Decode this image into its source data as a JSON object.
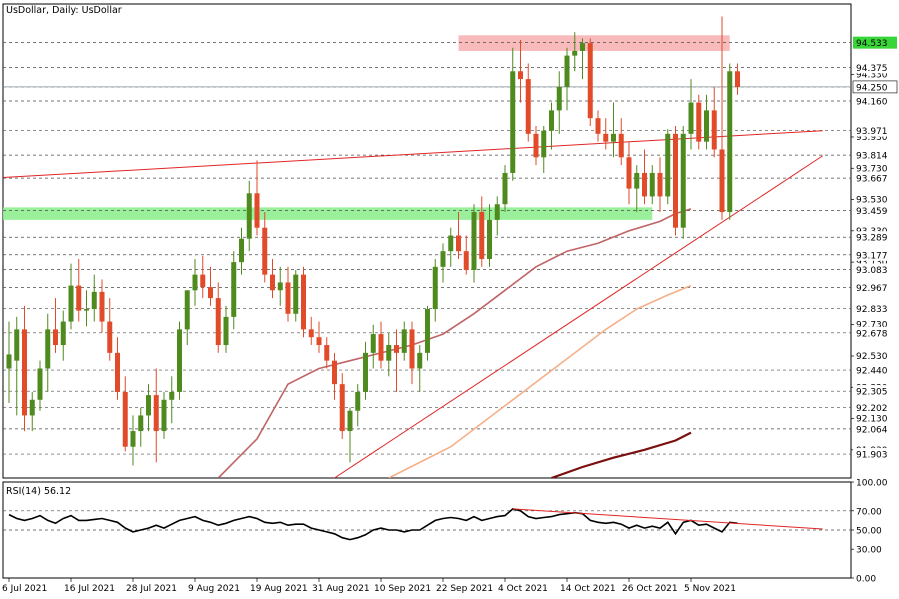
{
  "chart_data": {
    "type": "candlestick",
    "title": "UsDollar, Daily:  UsDollar",
    "price_axis": {
      "ylim": [
        91.75,
        94.78
      ],
      "tick_labels": [
        "94.533",
        "94.375",
        "94.250",
        "94.160",
        "93.971",
        "93.814",
        "93.667",
        "93.459",
        "93.289",
        "93.177",
        "93.083",
        "92.967",
        "92.833",
        "92.678",
        "92.440",
        "92.305",
        "92.202",
        "92.064",
        "91.903"
      ],
      "faint_tick_labels": [
        "94.330",
        "93.930",
        "93.730",
        "93.530",
        "93.330",
        "93.130",
        "92.730",
        "92.530",
        "92.330",
        "92.130",
        "91.930"
      ]
    },
    "current_price": 94.25,
    "dates": [
      "6 Jul 2021",
      "16 Jul 2021",
      "28 Jul 2021",
      "9 Aug 2021",
      "19 Aug 2021",
      "31 Aug 2021",
      "10 Sep 2021",
      "22 Sep 2021",
      "4 Oct 2021",
      "14 Oct 2021",
      "26 Oct 2021",
      "5 Nov 2021"
    ],
    "date_label_index": [
      0,
      8,
      16,
      24,
      32,
      40,
      48,
      56,
      64,
      72,
      80,
      88
    ],
    "candles": [
      [
        92.45,
        92.75,
        92.23,
        92.54
      ],
      [
        92.5,
        92.78,
        92.15,
        92.7
      ],
      [
        92.7,
        92.85,
        92.05,
        92.15
      ],
      [
        92.15,
        92.3,
        92.05,
        92.25
      ],
      [
        92.25,
        92.5,
        92.18,
        92.45
      ],
      [
        92.45,
        92.8,
        92.3,
        92.7
      ],
      [
        92.7,
        92.9,
        92.55,
        92.6
      ],
      [
        92.6,
        92.82,
        92.5,
        92.75
      ],
      [
        92.75,
        93.12,
        92.7,
        92.98
      ],
      [
        92.98,
        93.15,
        92.75,
        92.82
      ],
      [
        92.82,
        92.95,
        92.72,
        92.83
      ],
      [
        92.83,
        93.05,
        92.75,
        92.94
      ],
      [
        92.94,
        93.02,
        92.68,
        92.75
      ],
      [
        92.75,
        92.9,
        92.5,
        92.55
      ],
      [
        92.55,
        92.65,
        92.25,
        92.3
      ],
      [
        92.3,
        92.4,
        91.92,
        91.95
      ],
      [
        91.95,
        92.15,
        91.83,
        92.05
      ],
      [
        92.05,
        92.2,
        91.95,
        92.15
      ],
      [
        92.15,
        92.35,
        92.05,
        92.28
      ],
      [
        92.28,
        92.45,
        91.85,
        92.05
      ],
      [
        92.05,
        92.3,
        92.0,
        92.25
      ],
      [
        92.25,
        92.4,
        92.1,
        92.3
      ],
      [
        92.3,
        92.75,
        92.25,
        92.7
      ],
      [
        92.7,
        92.95,
        92.6,
        92.95
      ],
      [
        92.95,
        93.15,
        92.85,
        93.05
      ],
      [
        93.05,
        93.17,
        92.9,
        92.97
      ],
      [
        92.97,
        93.1,
        92.85,
        92.9
      ],
      [
        92.9,
        93.0,
        92.55,
        92.6
      ],
      [
        92.6,
        92.85,
        92.55,
        92.78
      ],
      [
        92.78,
        93.2,
        92.7,
        93.13
      ],
      [
        93.13,
        93.35,
        93.05,
        93.28
      ],
      [
        93.28,
        93.65,
        93.2,
        93.57
      ],
      [
        93.57,
        93.78,
        93.3,
        93.35
      ],
      [
        93.35,
        93.45,
        93.0,
        93.05
      ],
      [
        93.05,
        93.15,
        92.9,
        92.95
      ],
      [
        92.95,
        93.1,
        92.85,
        93.0
      ],
      [
        93.0,
        93.1,
        92.75,
        92.8
      ],
      [
        92.8,
        93.08,
        92.75,
        93.05
      ],
      [
        93.05,
        93.1,
        92.65,
        92.7
      ],
      [
        92.7,
        92.78,
        92.6,
        92.65
      ],
      [
        92.65,
        92.75,
        92.55,
        92.6
      ],
      [
        92.6,
        92.65,
        92.45,
        92.5
      ],
      [
        92.5,
        92.55,
        92.25,
        92.35
      ],
      [
        92.35,
        92.42,
        92.0,
        92.05
      ],
      [
        92.05,
        92.2,
        91.85,
        92.18
      ],
      [
        92.18,
        92.35,
        92.08,
        92.3
      ],
      [
        92.3,
        92.62,
        92.25,
        92.55
      ],
      [
        92.55,
        92.73,
        92.45,
        92.67
      ],
      [
        92.67,
        92.75,
        92.45,
        92.5
      ],
      [
        92.5,
        92.68,
        92.4,
        92.6
      ],
      [
        92.6,
        92.7,
        92.3,
        92.55
      ],
      [
        92.55,
        92.75,
        92.5,
        92.7
      ],
      [
        92.7,
        92.75,
        92.35,
        92.45
      ],
      [
        92.45,
        92.6,
        92.3,
        92.55
      ],
      [
        92.55,
        92.85,
        92.5,
        92.83
      ],
      [
        92.83,
        93.15,
        92.75,
        93.1
      ],
      [
        93.1,
        93.25,
        93.0,
        93.2
      ],
      [
        93.2,
        93.35,
        93.1,
        93.3
      ],
      [
        93.3,
        93.45,
        93.15,
        93.2
      ],
      [
        93.2,
        93.3,
        93.05,
        93.08
      ],
      [
        93.08,
        93.5,
        93.0,
        93.45
      ],
      [
        93.45,
        93.55,
        93.1,
        93.15
      ],
      [
        93.15,
        93.5,
        93.1,
        93.4
      ],
      [
        93.4,
        93.55,
        93.3,
        93.5
      ],
      [
        93.5,
        93.75,
        93.45,
        93.7
      ],
      [
        93.7,
        94.5,
        93.65,
        94.35
      ],
      [
        94.35,
        94.55,
        94.15,
        94.3
      ],
      [
        94.3,
        94.4,
        93.9,
        93.95
      ],
      [
        93.95,
        94.0,
        93.75,
        93.8
      ],
      [
        93.8,
        94.0,
        93.7,
        93.97
      ],
      [
        93.97,
        94.15,
        93.85,
        94.1
      ],
      [
        94.1,
        94.35,
        93.95,
        94.25
      ],
      [
        94.25,
        94.5,
        94.1,
        94.45
      ],
      [
        94.45,
        94.6,
        94.35,
        94.48
      ],
      [
        94.48,
        94.56,
        94.3,
        94.53
      ],
      [
        94.53,
        94.56,
        94.0,
        94.05
      ],
      [
        94.05,
        94.1,
        93.9,
        93.95
      ],
      [
        93.95,
        94.05,
        93.85,
        93.9
      ],
      [
        93.9,
        94.15,
        93.8,
        93.95
      ],
      [
        93.95,
        94.05,
        93.75,
        93.8
      ],
      [
        93.8,
        93.9,
        93.5,
        93.6
      ],
      [
        93.6,
        93.75,
        93.45,
        93.7
      ],
      [
        93.7,
        93.85,
        93.5,
        93.55
      ],
      [
        93.55,
        93.75,
        93.5,
        93.7
      ],
      [
        93.7,
        93.8,
        93.45,
        93.55
      ],
      [
        93.55,
        93.98,
        93.5,
        93.95
      ],
      [
        93.95,
        94.0,
        93.3,
        93.35
      ],
      [
        93.35,
        94.0,
        93.28,
        93.95
      ],
      [
        93.95,
        94.3,
        93.85,
        94.15
      ],
      [
        94.15,
        94.2,
        93.85,
        93.9
      ],
      [
        93.9,
        94.2,
        93.85,
        94.1
      ],
      [
        94.1,
        94.25,
        93.8,
        93.85
      ],
      [
        93.85,
        94.7,
        93.4,
        93.45
      ],
      [
        93.45,
        94.4,
        93.4,
        94.35
      ],
      [
        94.35,
        94.4,
        94.2,
        94.25
      ]
    ],
    "moving_averages": [
      {
        "color": "#c06466",
        "points": [
          [
            27,
            91.75
          ],
          [
            32,
            92.0
          ],
          [
            36,
            92.35
          ],
          [
            40,
            92.45
          ],
          [
            44,
            92.5
          ],
          [
            48,
            92.55
          ],
          [
            52,
            92.6
          ],
          [
            56,
            92.67
          ],
          [
            60,
            92.8
          ],
          [
            64,
            92.95
          ],
          [
            68,
            93.1
          ],
          [
            72,
            93.2
          ],
          [
            76,
            93.25
          ],
          [
            80,
            93.33
          ],
          [
            84,
            93.39
          ],
          [
            86,
            93.44
          ],
          [
            88,
            93.47
          ]
        ]
      },
      {
        "color": "#f5b08a",
        "points": [
          [
            49,
            91.75
          ],
          [
            53,
            91.85
          ],
          [
            57,
            91.95
          ],
          [
            61,
            92.1
          ],
          [
            65,
            92.25
          ],
          [
            69,
            92.4
          ],
          [
            73,
            92.55
          ],
          [
            77,
            92.7
          ],
          [
            81,
            92.83
          ],
          [
            85,
            92.92
          ],
          [
            88,
            92.98
          ]
        ]
      },
      {
        "color": "#7a1010",
        "points": [
          [
            70,
            91.75
          ],
          [
            74,
            91.82
          ],
          [
            78,
            91.88
          ],
          [
            82,
            91.93
          ],
          [
            86,
            91.99
          ],
          [
            88,
            92.04
          ]
        ]
      }
    ],
    "trendlines": [
      {
        "color": "#e02424",
        "from": [
          -1,
          93.67
        ],
        "to": [
          105,
          93.97
        ]
      },
      {
        "color": "#e02424",
        "from": [
          42,
          91.75
        ],
        "to": [
          105,
          93.81
        ]
      }
    ],
    "zones": [
      {
        "color": "#8fee8f",
        "from_index": -1,
        "to_index": 83,
        "low": 93.4,
        "high": 93.48
      },
      {
        "color": "#f7b2b2",
        "from_index": 58,
        "to_index": 93,
        "low": 94.48,
        "high": 94.58
      }
    ],
    "price_labels_highlighted": [
      "94.533",
      "94.375",
      "94.250",
      "94.160",
      "93.971",
      "93.814",
      "93.667",
      "93.459",
      "93.289",
      "93.177",
      "93.083",
      "92.967",
      "92.833",
      "92.678",
      "92.440",
      "92.305",
      "92.202",
      "92.064",
      "91.903"
    ],
    "rsi": {
      "title": "RSI(14) 56.12",
      "ylim": [
        0,
        100
      ],
      "tick_labels": [
        "100.00",
        "70.00",
        "50.00",
        "30.00",
        "0.00"
      ],
      "levels": [
        70,
        50
      ],
      "values": [
        66,
        62,
        60,
        62,
        65,
        60,
        57,
        62,
        65,
        60,
        60,
        61,
        62,
        60,
        58,
        52,
        48,
        50,
        52,
        55,
        52,
        56,
        60,
        62,
        64,
        60,
        58,
        55,
        57,
        60,
        62,
        64,
        62,
        58,
        57,
        58,
        55,
        56,
        56,
        52,
        50,
        48,
        46,
        42,
        40,
        42,
        45,
        50,
        52,
        50,
        50,
        48,
        50,
        50,
        55,
        60,
        62,
        63,
        62,
        60,
        64,
        60,
        62,
        64,
        65,
        72,
        70,
        64,
        62,
        63,
        64,
        66,
        67,
        68,
        67,
        60,
        58,
        57,
        58,
        56,
        52,
        55,
        52,
        54,
        52,
        58,
        46,
        58,
        60,
        55,
        56,
        52,
        48,
        58,
        57
      ],
      "trendline": {
        "color": "#e02424",
        "from": [
          65,
          72
        ],
        "to": [
          105,
          51
        ]
      }
    }
  }
}
